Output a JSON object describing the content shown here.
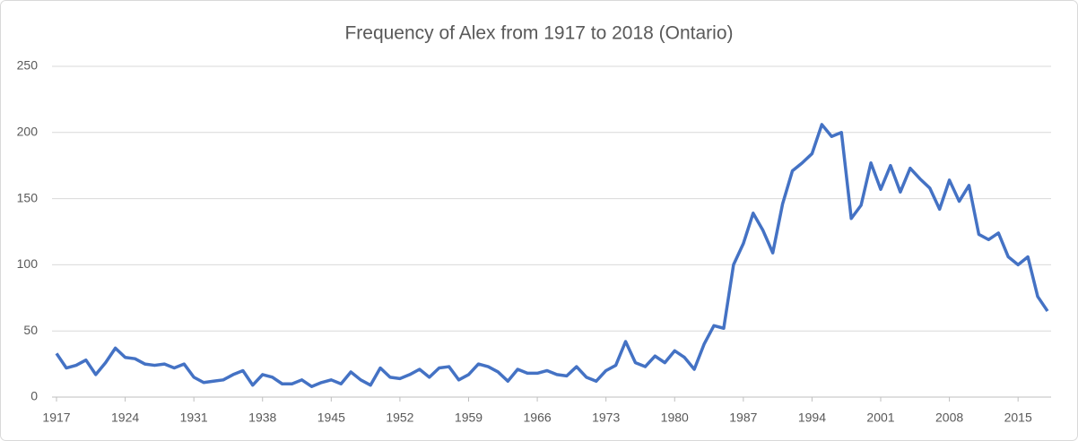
{
  "chart_data": {
    "type": "line",
    "title": "Frequency of Alex from 1917 to 2018 (Ontario)",
    "x": [
      1917,
      1918,
      1919,
      1920,
      1921,
      1922,
      1923,
      1924,
      1925,
      1926,
      1927,
      1928,
      1929,
      1930,
      1931,
      1932,
      1933,
      1934,
      1935,
      1936,
      1937,
      1938,
      1939,
      1940,
      1941,
      1942,
      1943,
      1944,
      1945,
      1946,
      1947,
      1948,
      1949,
      1950,
      1951,
      1952,
      1953,
      1954,
      1955,
      1956,
      1957,
      1958,
      1959,
      1960,
      1961,
      1962,
      1963,
      1964,
      1965,
      1966,
      1967,
      1968,
      1969,
      1970,
      1971,
      1972,
      1973,
      1974,
      1975,
      1976,
      1977,
      1978,
      1979,
      1980,
      1981,
      1982,
      1983,
      1984,
      1985,
      1986,
      1987,
      1988,
      1989,
      1990,
      1991,
      1992,
      1993,
      1994,
      1995,
      1996,
      1997,
      1998,
      1999,
      2000,
      2001,
      2002,
      2003,
      2004,
      2005,
      2006,
      2007,
      2008,
      2009,
      2010,
      2011,
      2012,
      2013,
      2014,
      2015,
      2016,
      2017,
      2018
    ],
    "series": [
      {
        "name": "Alex",
        "color": "#4472c4",
        "values": [
          33,
          22,
          24,
          28,
          17,
          26,
          37,
          30,
          29,
          25,
          24,
          25,
          22,
          25,
          15,
          11,
          12,
          13,
          17,
          20,
          9,
          17,
          15,
          10,
          10,
          13,
          8,
          11,
          13,
          10,
          19,
          13,
          9,
          22,
          15,
          14,
          17,
          21,
          15,
          22,
          23,
          13,
          17,
          25,
          23,
          19,
          12,
          21,
          18,
          18,
          20,
          17,
          16,
          23,
          15,
          12,
          20,
          24,
          42,
          26,
          23,
          31,
          26,
          35,
          30,
          21,
          40,
          54,
          52,
          100,
          116,
          139,
          126,
          109,
          146,
          171,
          177,
          184,
          206,
          197,
          200,
          135,
          145,
          177,
          157,
          175,
          155,
          173,
          165,
          158,
          142,
          164,
          148,
          160,
          123,
          119,
          124,
          106,
          100,
          106,
          76,
          65
        ]
      }
    ],
    "xlim": [
      1917,
      2018
    ],
    "xticks": [
      1917,
      1924,
      1931,
      1938,
      1945,
      1952,
      1959,
      1966,
      1973,
      1980,
      1987,
      1994,
      2001,
      2008,
      2015
    ],
    "ylim": [
      0,
      250
    ],
    "yticks": [
      0,
      50,
      100,
      150,
      200,
      250
    ],
    "grid": true
  }
}
